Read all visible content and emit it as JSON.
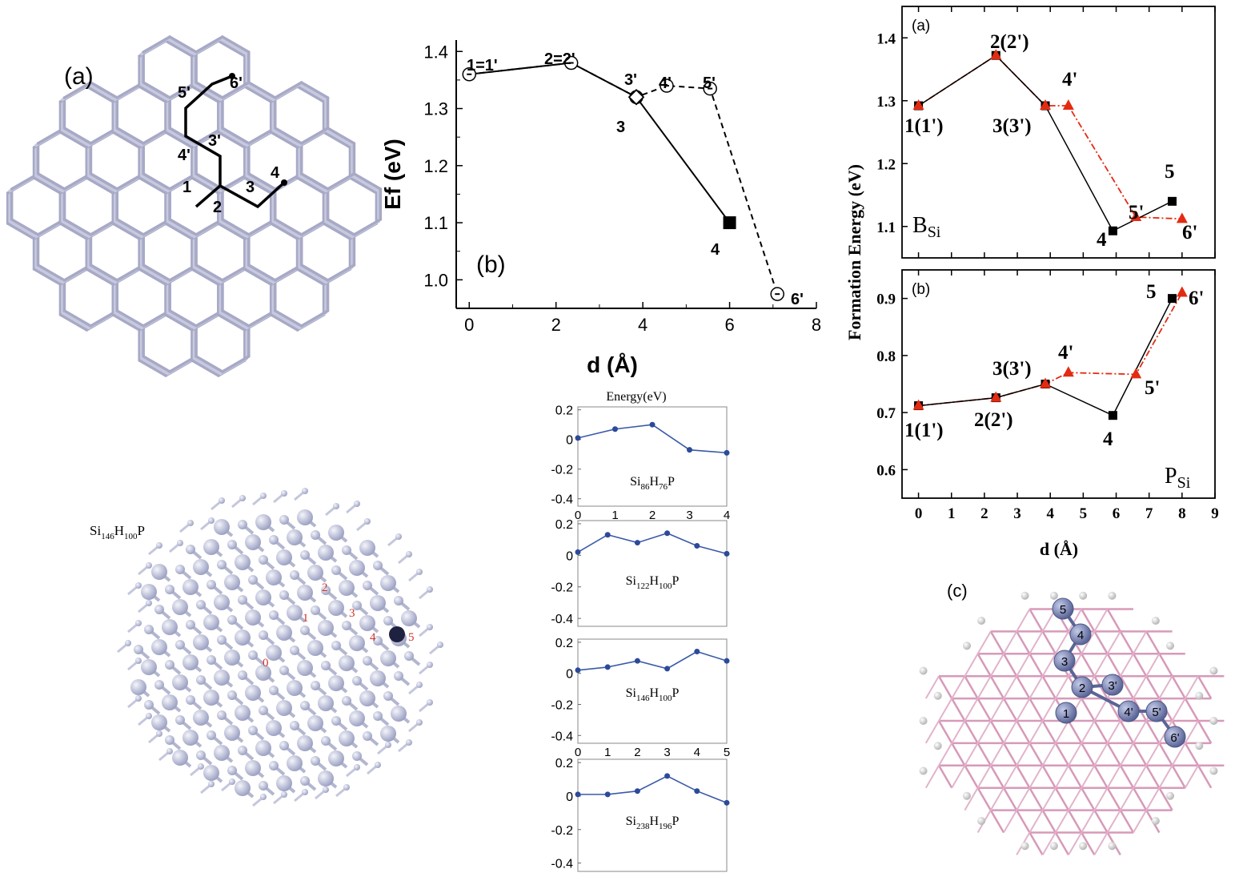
{
  "panels": {
    "lattice_a": {
      "label": "(a)",
      "path_labels": [
        "1",
        "2",
        "3",
        "4",
        "3'",
        "4'",
        "5'",
        "6'"
      ]
    },
    "cluster": {
      "label": "Si146H100P",
      "label_parts": [
        "Si",
        "146",
        "H",
        "100",
        "P"
      ],
      "site_labels": [
        "0",
        "1",
        "2",
        "3",
        "4",
        "5"
      ]
    },
    "lattice_c": {
      "label": "(c)",
      "site_labels": [
        "5",
        "4",
        "3",
        "2",
        "3'",
        "1",
        "4'",
        "5'",
        "6'"
      ]
    }
  },
  "chart_data": [
    {
      "id": "chart-b-middle",
      "type": "line",
      "panel_label": "(b)",
      "xlabel": "d (Å)",
      "ylabel": "Ef (eV)",
      "xlim": [
        -0.3,
        8
      ],
      "ylim": [
        0.95,
        1.42
      ],
      "xticks": [
        "0",
        "2",
        "4",
        "6",
        "8"
      ],
      "yticks": [
        "1.0",
        "1.1",
        "1.2",
        "1.3",
        "1.4"
      ],
      "series": [
        {
          "style": "solid",
          "x": [
            0,
            2.35,
            3.85,
            6.0
          ],
          "y": [
            1.36,
            1.38,
            1.32,
            1.1
          ]
        },
        {
          "style": "dashed",
          "x": [
            0,
            2.35,
            3.85,
            4.55,
            5.55,
            7.1
          ],
          "y": [
            1.36,
            1.38,
            1.32,
            1.34,
            1.335,
            0.975
          ]
        }
      ],
      "point_labels": [
        "1=1'",
        "2=2'",
        "3'",
        "4'",
        "5'",
        "3",
        "4",
        "6'"
      ]
    },
    {
      "id": "chart-a-right",
      "type": "line",
      "panel_label": "(a)",
      "annotation": "BSi",
      "xlim": [
        -0.5,
        9
      ],
      "ylim": [
        1.05,
        1.45
      ],
      "yticks": [
        "1.1",
        "1.2",
        "1.3",
        "1.4"
      ],
      "series": [
        {
          "color": "#000000",
          "x": [
            0,
            2.35,
            3.85,
            5.9,
            7.7
          ],
          "y": [
            1.292,
            1.372,
            1.292,
            1.093,
            1.14
          ]
        },
        {
          "color": "#e32b12",
          "x": [
            0,
            2.35,
            3.85,
            4.55,
            6.6,
            8.0
          ],
          "y": [
            1.292,
            1.372,
            1.292,
            1.292,
            1.115,
            1.112
          ]
        }
      ],
      "point_labels": [
        "1(1')",
        "2(2')",
        "3(3')",
        "4'",
        "5",
        "5'",
        "4",
        "6'"
      ]
    },
    {
      "id": "chart-b-right",
      "type": "line",
      "panel_label": "(b)",
      "annotation": "PSi",
      "xlabel": "d (Å)",
      "ylabel": "Formation Energy (eV)",
      "xlim": [
        -0.5,
        9
      ],
      "ylim": [
        0.55,
        0.95
      ],
      "xticks": [
        "0",
        "1",
        "2",
        "3",
        "4",
        "5",
        "6",
        "7",
        "8",
        "9"
      ],
      "yticks": [
        "0.6",
        "0.7",
        "0.8",
        "0.9"
      ],
      "series": [
        {
          "color": "#000000",
          "x": [
            0,
            2.35,
            3.85,
            5.9,
            7.7
          ],
          "y": [
            0.712,
            0.726,
            0.75,
            0.695,
            0.9
          ]
        },
        {
          "color": "#e32b12",
          "x": [
            0,
            2.35,
            3.85,
            4.55,
            6.6,
            8.0
          ],
          "y": [
            0.712,
            0.726,
            0.75,
            0.77,
            0.767,
            0.91
          ]
        }
      ],
      "point_labels": [
        "1(1')",
        "2(2')",
        "3(3')",
        "4'",
        "5",
        "6'",
        "5'",
        "4"
      ]
    },
    {
      "id": "chart-small-1",
      "type": "line",
      "header": "Energy(eV)",
      "label_parts": [
        "Si",
        "86",
        "H",
        "76",
        "P"
      ],
      "xlim": [
        0,
        4
      ],
      "ylim": [
        -0.45,
        0.22
      ],
      "xticks": [
        "0",
        "1",
        "2",
        "3",
        "4"
      ],
      "yticks": [
        "0.2",
        "0",
        "-0.2",
        "-0.4"
      ],
      "x": [
        0,
        1,
        2,
        3,
        4
      ],
      "y": [
        0.01,
        0.07,
        0.1,
        -0.07,
        -0.09
      ]
    },
    {
      "id": "chart-small-2",
      "type": "line",
      "label_parts": [
        "Si",
        "122",
        "H",
        "100",
        "P"
      ],
      "xlim": [
        0,
        5
      ],
      "ylim": [
        -0.45,
        0.22
      ],
      "yticks": [
        "0.2",
        "0",
        "-0.2",
        "-0.4"
      ],
      "x": [
        0,
        1,
        2,
        3,
        4,
        5
      ],
      "y": [
        0.02,
        0.13,
        0.08,
        0.14,
        0.06,
        0.01
      ]
    },
    {
      "id": "chart-small-3",
      "type": "line",
      "label_parts": [
        "Si",
        "146",
        "H",
        "100",
        "P"
      ],
      "xlim": [
        0,
        5
      ],
      "ylim": [
        -0.45,
        0.22
      ],
      "xticks": [
        "0",
        "1",
        "2",
        "3",
        "4",
        "5"
      ],
      "yticks": [
        "0.2",
        "0",
        "-0.2",
        "-0.4"
      ],
      "x": [
        0,
        1,
        2,
        3,
        4,
        5
      ],
      "y": [
        0.02,
        0.04,
        0.08,
        0.03,
        0.14,
        0.08
      ]
    },
    {
      "id": "chart-small-4",
      "type": "line",
      "label_parts": [
        "Si",
        "238",
        "H",
        "196",
        "P"
      ],
      "xlim": [
        0,
        5
      ],
      "ylim": [
        -0.45,
        0.22
      ],
      "yticks": [
        "0.2",
        "0",
        "-0.2",
        "-0.4"
      ],
      "x": [
        0,
        1,
        2,
        3,
        4,
        5
      ],
      "y": [
        0.01,
        0.01,
        0.03,
        0.12,
        0.03,
        -0.04
      ]
    }
  ]
}
